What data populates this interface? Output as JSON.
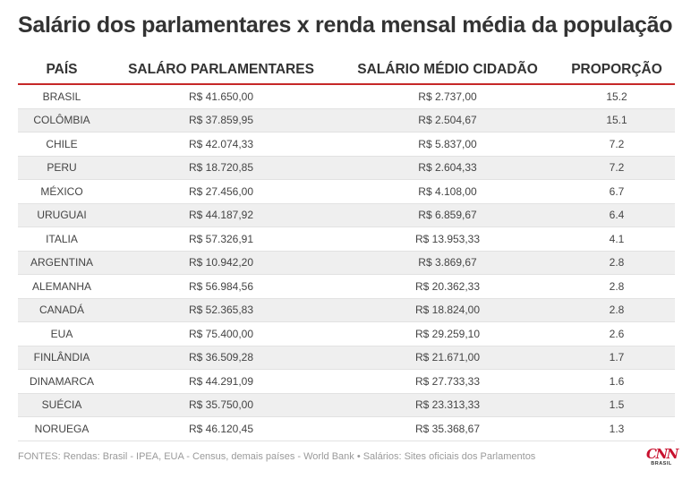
{
  "title": "Salário dos parlamentares x renda mensal média da população",
  "source": "FONTES: Rendas: Brasil - IPEA, EUA - Census, demais países - World Bank • Salários: Sites oficiais dos Parlamentos",
  "logo": {
    "main": "CNN",
    "sub": "BRASIL"
  },
  "colors": {
    "accent": "#c62828",
    "logo": "#c8102e",
    "stripe": "#efefef"
  },
  "chart_data": {
    "type": "table",
    "title": "Salário dos parlamentares x renda mensal média da população",
    "columns": [
      "PAÍS",
      "SALÁRO PARLAMENTARES",
      "SALÁRIO MÉDIO CIDADÃO",
      "PROPORÇÃO"
    ],
    "rows": [
      [
        "BRASIL",
        "R$ 41.650,00",
        "R$ 2.737,00",
        "15.2"
      ],
      [
        "COLÔMBIA",
        "R$ 37.859,95",
        "R$ 2.504,67",
        "15.1"
      ],
      [
        "CHILE",
        "R$ 42.074,33",
        "R$ 5.837,00",
        "7.2"
      ],
      [
        "PERU",
        "R$ 18.720,85",
        "R$ 2.604,33",
        "7.2"
      ],
      [
        "MÉXICO",
        "R$ 27.456,00",
        "R$ 4.108,00",
        "6.7"
      ],
      [
        "URUGUAI",
        "R$ 44.187,92",
        "R$ 6.859,67",
        "6.4"
      ],
      [
        "ITALIA",
        "R$ 57.326,91",
        "R$ 13.953,33",
        "4.1"
      ],
      [
        "ARGENTINA",
        "R$ 10.942,20",
        "R$ 3.869,67",
        "2.8"
      ],
      [
        "ALEMANHA",
        "R$ 56.984,56",
        "R$ 20.362,33",
        "2.8"
      ],
      [
        "CANADÁ",
        "R$ 52.365,83",
        "R$ 18.824,00",
        "2.8"
      ],
      [
        "EUA",
        "R$ 75.400,00",
        "R$ 29.259,10",
        "2.6"
      ],
      [
        "FINLÂNDIA",
        "R$ 36.509,28",
        "R$ 21.671,00",
        "1.7"
      ],
      [
        "DINAMARCA",
        "R$ 44.291,09",
        "R$ 27.733,33",
        "1.6"
      ],
      [
        "SUÉCIA",
        "R$ 35.750,00",
        "R$ 23.313,33",
        "1.5"
      ],
      [
        "NORUEGA",
        "R$ 46.120,45",
        "R$ 35.368,67",
        "1.3"
      ]
    ]
  }
}
